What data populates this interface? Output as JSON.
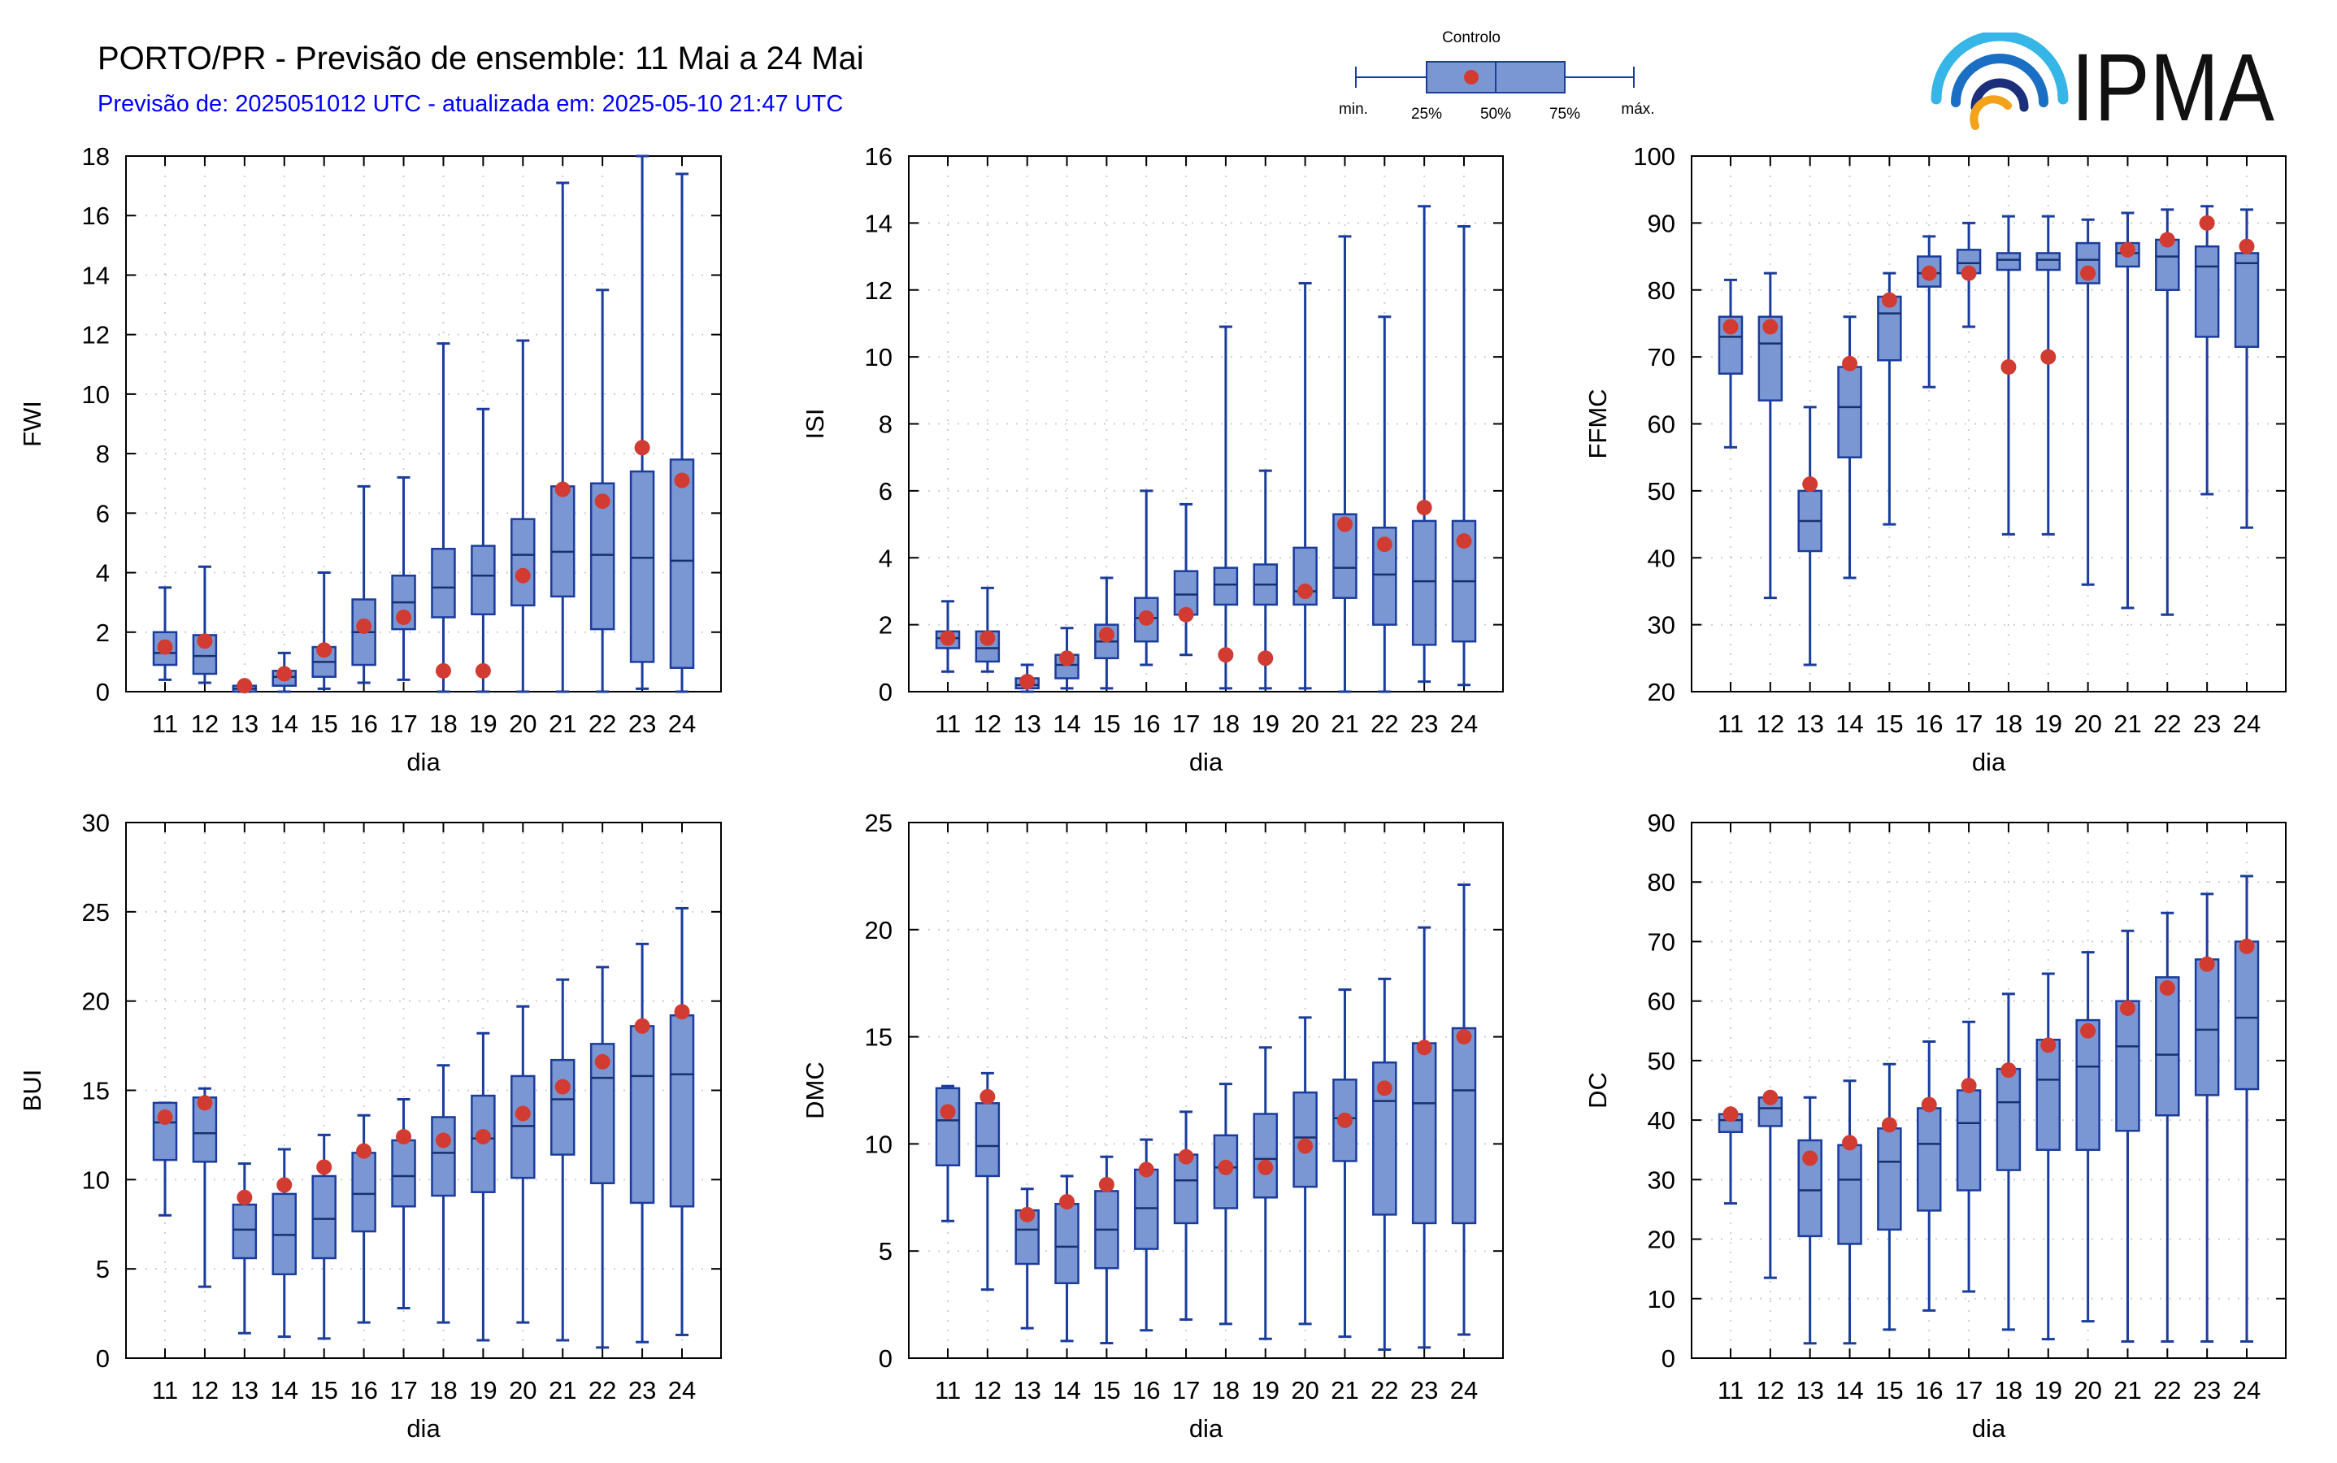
{
  "header": {
    "title": "PORTO/PR - Previsão de ensemble: 11 Mai a 24 Mai",
    "subtitle": "Previsão de: 2025051012 UTC - atualizada em: 2025-05-10 21:47 UTC"
  },
  "logo": {
    "text": "IPMA"
  },
  "legend": {
    "title": "Controlo",
    "labels": {
      "min": "min.",
      "p25": "25%",
      "p50": "50%",
      "p75": "75%",
      "max": "máx."
    }
  },
  "colors": {
    "box": "#7b97d3",
    "stroke": "#1a3c9c",
    "control": "#d23b32",
    "subtitle": "#0000ff",
    "grid": "#cfcfcf"
  },
  "chart_data": [
    {
      "type": "boxplot",
      "ylabel": "FWI",
      "xlabel": "dia",
      "categories": [
        "11",
        "12",
        "13",
        "14",
        "15",
        "16",
        "17",
        "18",
        "19",
        "20",
        "21",
        "22",
        "23",
        "24"
      ],
      "ylim": [
        0,
        18
      ],
      "yticks": [
        0,
        2,
        4,
        6,
        8,
        10,
        12,
        14,
        16,
        18
      ],
      "grid": true,
      "min": [
        0.4,
        0.3,
        0,
        0,
        0.1,
        0.3,
        0.4,
        0,
        0,
        0,
        0,
        0,
        0.1,
        0
      ],
      "q1": [
        0.9,
        0.6,
        0,
        0.2,
        0.5,
        0.9,
        2.1,
        2.5,
        2.6,
        2.9,
        3.2,
        2.1,
        1.0,
        0.8
      ],
      "median": [
        1.3,
        1.2,
        0.1,
        0.5,
        1.0,
        2.0,
        3.0,
        3.5,
        3.9,
        4.6,
        4.7,
        4.6,
        4.5,
        4.4
      ],
      "q3": [
        2.0,
        1.9,
        0.2,
        0.7,
        1.5,
        3.1,
        3.9,
        4.8,
        4.9,
        5.8,
        6.9,
        7.0,
        7.4,
        7.8
      ],
      "max": [
        3.5,
        4.2,
        0.3,
        1.3,
        4.0,
        6.9,
        7.2,
        11.7,
        9.5,
        11.8,
        17.1,
        13.5,
        18.0,
        17.4
      ],
      "control": [
        1.5,
        1.7,
        0.2,
        0.6,
        1.4,
        2.2,
        2.5,
        0.7,
        0.7,
        3.9,
        6.8,
        6.4,
        8.2,
        7.1
      ]
    },
    {
      "type": "boxplot",
      "ylabel": "ISI",
      "xlabel": "dia",
      "categories": [
        "11",
        "12",
        "13",
        "14",
        "15",
        "16",
        "17",
        "18",
        "19",
        "20",
        "21",
        "22",
        "23",
        "24"
      ],
      "ylim": [
        0,
        16
      ],
      "yticks": [
        0,
        2,
        4,
        6,
        8,
        10,
        12,
        14,
        16
      ],
      "grid": true,
      "min": [
        0.6,
        0.6,
        0,
        0.1,
        0.1,
        0.8,
        1.1,
        0.1,
        0.1,
        0.1,
        0,
        0,
        0.3,
        0.2
      ],
      "q1": [
        1.3,
        0.9,
        0.1,
        0.4,
        1.0,
        1.5,
        2.3,
        2.6,
        2.6,
        2.6,
        2.8,
        2.0,
        1.4,
        1.5
      ],
      "median": [
        1.6,
        1.3,
        0.2,
        0.8,
        1.5,
        2.2,
        2.9,
        3.2,
        3.2,
        3.0,
        3.7,
        3.5,
        3.3,
        3.3
      ],
      "q3": [
        1.8,
        1.8,
        0.4,
        1.1,
        2.0,
        2.8,
        3.6,
        3.7,
        3.8,
        4.3,
        5.3,
        4.9,
        5.1,
        5.1
      ],
      "max": [
        2.7,
        3.1,
        0.8,
        1.9,
        3.4,
        6.0,
        5.6,
        10.9,
        6.6,
        12.2,
        13.6,
        11.2,
        14.5,
        13.9
      ],
      "control": [
        1.6,
        1.6,
        0.3,
        1.0,
        1.7,
        2.2,
        2.3,
        1.1,
        1.0,
        3.0,
        5.0,
        4.4,
        5.5,
        4.5
      ]
    },
    {
      "type": "boxplot",
      "ylabel": "FFMC",
      "xlabel": "dia",
      "categories": [
        "11",
        "12",
        "13",
        "14",
        "15",
        "16",
        "17",
        "18",
        "19",
        "20",
        "21",
        "22",
        "23",
        "24"
      ],
      "ylim": [
        20,
        100
      ],
      "yticks": [
        20,
        30,
        40,
        50,
        60,
        70,
        80,
        90,
        100
      ],
      "grid": true,
      "min": [
        56.5,
        34.0,
        24.0,
        37.0,
        45.0,
        65.5,
        74.5,
        43.5,
        43.5,
        36.0,
        32.5,
        31.5,
        49.5,
        44.5
      ],
      "q1": [
        67.5,
        63.5,
        41.0,
        55.0,
        69.5,
        80.5,
        82.5,
        83.0,
        83.0,
        81.0,
        83.5,
        80.0,
        73.0,
        71.5
      ],
      "median": [
        73.0,
        72.0,
        45.5,
        62.5,
        76.5,
        82.5,
        84.0,
        84.5,
        84.5,
        84.5,
        85.5,
        85.0,
        83.5,
        84.0
      ],
      "q3": [
        76.0,
        76.0,
        50.0,
        68.5,
        79.0,
        85.0,
        86.0,
        85.5,
        85.5,
        87.0,
        87.0,
        87.5,
        86.5,
        85.5
      ],
      "max": [
        81.5,
        82.5,
        62.5,
        76.0,
        82.5,
        88.0,
        90.0,
        91.0,
        91.0,
        90.5,
        91.5,
        92.0,
        92.5,
        92.0
      ],
      "control": [
        74.5,
        74.5,
        51.0,
        69.0,
        78.5,
        82.5,
        82.5,
        68.5,
        70.0,
        82.5,
        86.0,
        87.5,
        90.0,
        86.5
      ]
    },
    {
      "type": "boxplot",
      "ylabel": "BUI",
      "xlabel": "dia",
      "categories": [
        "11",
        "12",
        "13",
        "14",
        "15",
        "16",
        "17",
        "18",
        "19",
        "20",
        "21",
        "22",
        "23",
        "24"
      ],
      "ylim": [
        0,
        30
      ],
      "yticks": [
        0,
        5,
        10,
        15,
        20,
        25,
        30
      ],
      "grid": true,
      "min": [
        8.0,
        4.0,
        1.4,
        1.2,
        1.1,
        2.0,
        2.8,
        2.0,
        1.0,
        2.0,
        1.0,
        0.6,
        0.9,
        1.3
      ],
      "q1": [
        11.1,
        11.0,
        5.6,
        4.7,
        5.6,
        7.1,
        8.5,
        9.1,
        9.3,
        10.1,
        11.4,
        9.8,
        8.7,
        8.5
      ],
      "median": [
        13.2,
        12.6,
        7.2,
        6.9,
        7.8,
        9.2,
        10.2,
        11.5,
        12.3,
        13.0,
        14.5,
        15.7,
        15.8,
        15.9
      ],
      "q3": [
        14.3,
        14.6,
        8.6,
        9.2,
        10.2,
        11.5,
        12.2,
        13.5,
        14.7,
        15.8,
        16.7,
        17.6,
        18.6,
        19.2
      ],
      "max": [
        14.3,
        15.1,
        10.9,
        11.7,
        12.5,
        13.6,
        14.5,
        16.4,
        18.2,
        19.7,
        21.2,
        21.9,
        23.2,
        25.2
      ],
      "control": [
        13.5,
        14.3,
        9.0,
        9.7,
        10.7,
        11.6,
        12.4,
        12.2,
        12.4,
        13.7,
        15.2,
        16.6,
        18.6,
        19.4
      ]
    },
    {
      "type": "boxplot",
      "ylabel": "DMC",
      "xlabel": "dia",
      "categories": [
        "11",
        "12",
        "13",
        "14",
        "15",
        "16",
        "17",
        "18",
        "19",
        "20",
        "21",
        "22",
        "23",
        "24"
      ],
      "ylim": [
        0,
        25
      ],
      "yticks": [
        0,
        5,
        10,
        15,
        20,
        25
      ],
      "grid": true,
      "min": [
        6.4,
        3.2,
        1.4,
        0.8,
        0.7,
        1.3,
        1.8,
        1.6,
        0.9,
        1.6,
        1.0,
        0.4,
        0.5,
        1.1
      ],
      "q1": [
        9.0,
        8.5,
        4.4,
        3.5,
        4.2,
        5.1,
        6.3,
        7.0,
        7.5,
        8.0,
        9.2,
        6.7,
        6.3,
        6.3
      ],
      "median": [
        11.1,
        9.9,
        6.0,
        5.2,
        6.0,
        7.0,
        8.3,
        8.9,
        9.3,
        10.3,
        11.2,
        12.0,
        11.9,
        12.5
      ],
      "q3": [
        12.6,
        11.9,
        6.9,
        7.2,
        7.8,
        8.8,
        9.5,
        10.4,
        11.4,
        12.4,
        13.0,
        13.8,
        14.7,
        15.4
      ],
      "max": [
        12.7,
        13.3,
        7.9,
        8.5,
        9.4,
        10.2,
        11.5,
        12.8,
        14.5,
        15.9,
        17.2,
        17.7,
        20.1,
        22.1
      ],
      "control": [
        11.5,
        12.2,
        6.7,
        7.3,
        8.1,
        8.8,
        9.4,
        8.9,
        8.9,
        9.9,
        11.1,
        12.6,
        14.5,
        15.0
      ]
    },
    {
      "type": "boxplot",
      "ylabel": "DC",
      "xlabel": "dia",
      "categories": [
        "11",
        "12",
        "13",
        "14",
        "15",
        "16",
        "17",
        "18",
        "19",
        "20",
        "21",
        "22",
        "23",
        "24"
      ],
      "ylim": [
        0,
        90
      ],
      "yticks": [
        0,
        10,
        20,
        30,
        40,
        50,
        60,
        70,
        80,
        90
      ],
      "grid": true,
      "min": [
        26.0,
        13.5,
        2.5,
        2.5,
        4.8,
        8.0,
        11.2,
        4.8,
        3.2,
        6.2,
        2.8,
        2.8,
        2.8,
        2.8
      ],
      "q1": [
        38.0,
        39.0,
        20.5,
        19.2,
        21.6,
        24.8,
        28.2,
        31.6,
        35.0,
        35.0,
        38.2,
        40.8,
        44.2,
        45.2
      ],
      "median": [
        40.0,
        42.0,
        28.2,
        30.0,
        33.0,
        36.0,
        39.5,
        43.0,
        46.8,
        49.0,
        52.4,
        51.0,
        55.2,
        57.2
      ],
      "q3": [
        41.0,
        43.8,
        36.6,
        35.8,
        38.6,
        42.0,
        45.0,
        48.6,
        53.5,
        56.8,
        60.0,
        64.0,
        67.0,
        70.0
      ],
      "max": [
        41.0,
        44.2,
        43.8,
        46.6,
        49.4,
        53.2,
        56.5,
        61.2,
        64.6,
        68.2,
        71.8,
        74.8,
        78.0,
        81.0
      ],
      "control": [
        41.0,
        43.8,
        33.6,
        36.2,
        39.2,
        42.6,
        45.8,
        48.4,
        52.6,
        55.0,
        58.8,
        62.2,
        66.2,
        69.2
      ]
    }
  ]
}
